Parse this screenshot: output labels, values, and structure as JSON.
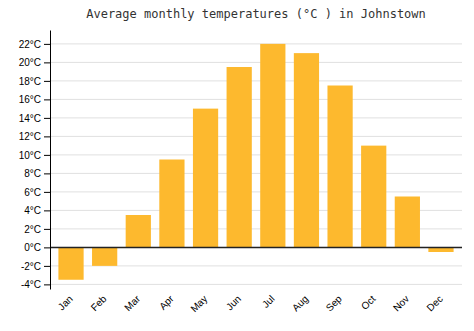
{
  "chart_data": {
    "type": "bar",
    "title": "Average monthly temperatures (°C ) in Johnstown",
    "categories": [
      "Jan",
      "Feb",
      "Mar",
      "Apr",
      "May",
      "Jun",
      "Jul",
      "Aug",
      "Sep",
      "Oct",
      "Nov",
      "Dec"
    ],
    "values": [
      -3.5,
      -2.0,
      3.5,
      9.5,
      15.0,
      19.5,
      22.0,
      21.0,
      17.5,
      11.0,
      5.5,
      -0.5
    ],
    "color": "#FDB92E",
    "ylim": [
      -4.5,
      23.5
    ],
    "yticks": [
      {
        "value": -4,
        "label": "-4°C"
      },
      {
        "value": -2,
        "label": "-2°C"
      },
      {
        "value": 0,
        "label": "0°C"
      },
      {
        "value": 2,
        "label": "2°C"
      },
      {
        "value": 4,
        "label": "4°C"
      },
      {
        "value": 6,
        "label": "6°C"
      },
      {
        "value": 8,
        "label": "8°C"
      },
      {
        "value": 10,
        "label": "10°C"
      },
      {
        "value": 12,
        "label": "12°C"
      },
      {
        "value": 14,
        "label": "14°C"
      },
      {
        "value": 16,
        "label": "16°C"
      },
      {
        "value": 18,
        "label": "18°C"
      },
      {
        "value": 20,
        "label": "20°C"
      },
      {
        "value": 22,
        "label": "22°C"
      }
    ],
    "grid": true
  }
}
